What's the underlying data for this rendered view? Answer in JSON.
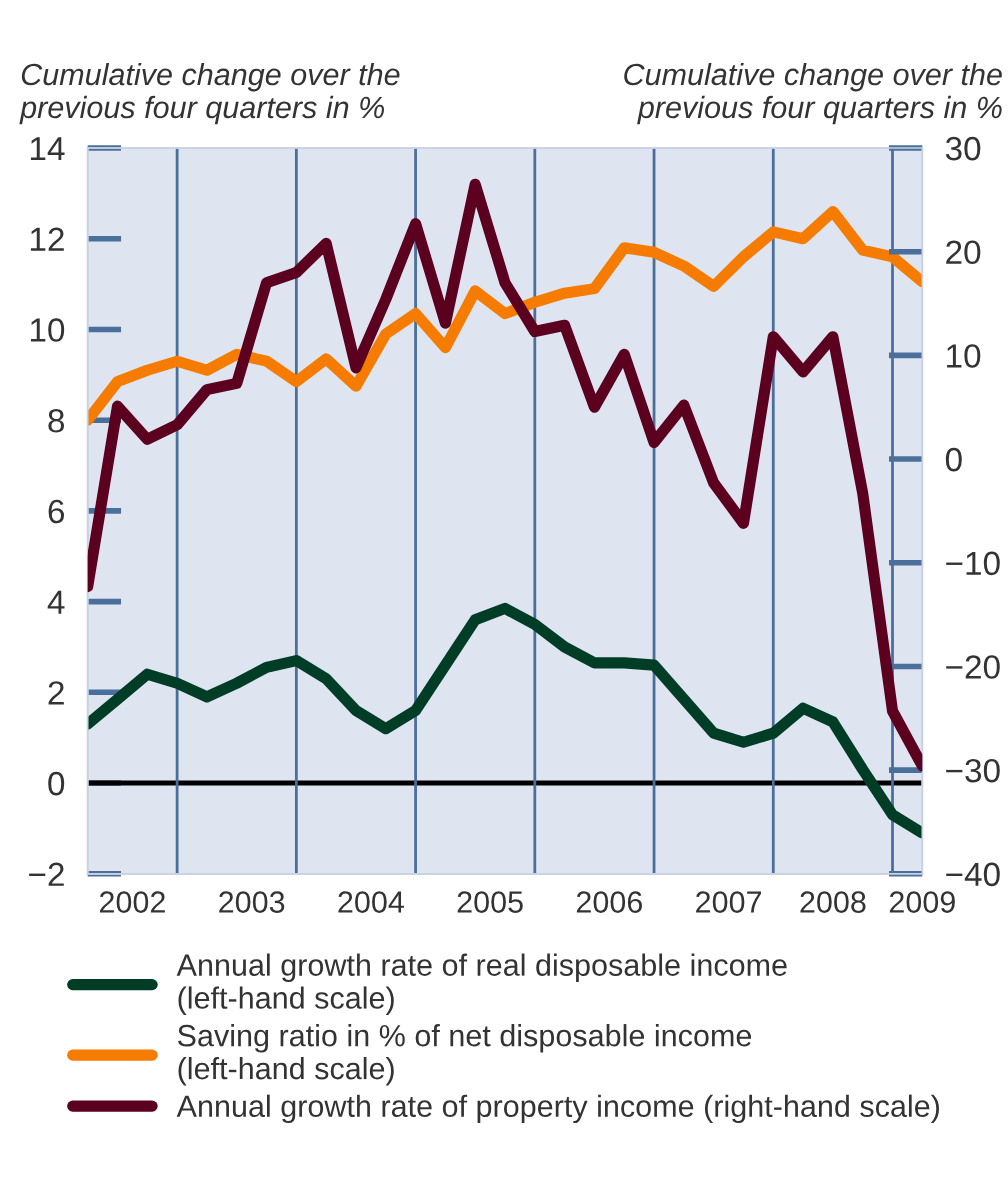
{
  "chart_data": {
    "type": "line",
    "ylabel": "Cumulative change over the\nprevious four quarters in %",
    "y2label": "Cumulative change over the\nprevious four quarters in %",
    "x": [
      2002.0,
      2002.25,
      2002.5,
      2002.75,
      2003.0,
      2003.25,
      2003.5,
      2003.75,
      2004.0,
      2004.25,
      2004.5,
      2004.75,
      2005.0,
      2005.25,
      2005.5,
      2005.75,
      2006.0,
      2006.25,
      2006.5,
      2006.75,
      2007.0,
      2007.25,
      2007.5,
      2007.75,
      2008.0,
      2008.25,
      2008.5,
      2008.75,
      2009.0
    ],
    "series": [
      {
        "name": "Annual growth rate of real disposable income\n(left-hand scale)",
        "color": "#003d26",
        "values": [
          1.3,
          1.85,
          2.4,
          2.2,
          1.9,
          2.2,
          2.55,
          2.7,
          2.3,
          1.6,
          1.2,
          1.6,
          2.6,
          3.6,
          3.85,
          3.5,
          3.0,
          2.65,
          2.65,
          2.6,
          1.85,
          1.1,
          0.9,
          1.1,
          1.65,
          1.35,
          0.3,
          -0.7,
          -1.1
        ]
      },
      {
        "name": "Saving ratio in % of net disposable income\n(left-hand scale)",
        "color": "#f57c00",
        "values": [
          8.0,
          8.85,
          9.1,
          9.3,
          9.1,
          9.45,
          9.3,
          8.85,
          9.35,
          8.75,
          9.9,
          10.35,
          9.6,
          10.85,
          10.35,
          10.6,
          10.8,
          10.9,
          11.8,
          11.7,
          11.4,
          10.95,
          11.6,
          12.15,
          12.0,
          12.6,
          11.75,
          11.6,
          11.05
        ]
      },
      {
        "name": "Annual growth rate of property income (right-hand scale)",
        "color": "#5c0020",
        "axis": "y2",
        "values": [
          -12.3,
          5.1,
          1.9,
          3.3,
          6.7,
          7.3,
          17.0,
          18.0,
          20.8,
          8.8,
          15.4,
          22.7,
          13.1,
          26.5,
          17.0,
          12.3,
          12.9,
          5.0,
          10.1,
          1.6,
          5.2,
          -2.3,
          -6.2,
          11.8,
          8.4,
          11.8,
          -3.3,
          -24.3,
          -29.6
        ]
      }
    ],
    "xlim": [
      2002.0,
      2009.0
    ],
    "xticks": [
      {
        "value": 2002.375,
        "label": "2002"
      },
      {
        "value": 2003.375,
        "label": "2003"
      },
      {
        "value": 2004.375,
        "label": "2004"
      },
      {
        "value": 2005.375,
        "label": "2005"
      },
      {
        "value": 2006.375,
        "label": "2006"
      },
      {
        "value": 2007.375,
        "label": "2007"
      },
      {
        "value": 2008.25,
        "label": "2008"
      },
      {
        "value": 2009.0,
        "label": "2009"
      }
    ],
    "ylim": [
      -2,
      14
    ],
    "yticks": [
      {
        "value": -2,
        "label": "−2"
      },
      0,
      2,
      4,
      6,
      8,
      10,
      12,
      14
    ],
    "y2lim": [
      -40,
      30
    ],
    "y2ticks": [
      {
        "value": -40,
        "label": "−40"
      },
      {
        "value": -30,
        "label": "−30"
      },
      {
        "value": -20,
        "label": "−20"
      },
      {
        "value": -10,
        "label": "−10"
      },
      0,
      10,
      20,
      30
    ],
    "ref_lines": [
      {
        "axis": "y",
        "value": 0,
        "color": "#000000"
      },
      {
        "axis": "x",
        "value": 2002.75,
        "color": "#4a6f9a"
      },
      {
        "axis": "x",
        "value": 2003.75,
        "color": "#4a6f9a"
      },
      {
        "axis": "x",
        "value": 2004.75,
        "color": "#4a6f9a"
      },
      {
        "axis": "x",
        "value": 2005.75,
        "color": "#4a6f9a"
      },
      {
        "axis": "x",
        "value": 2006.75,
        "color": "#4a6f9a"
      },
      {
        "axis": "x",
        "value": 2007.75,
        "color": "#4a6f9a"
      },
      {
        "axis": "x",
        "value": 2008.75,
        "color": "#4a6f9a"
      }
    ],
    "legend": "bottom",
    "grid": false,
    "line_style": "solid",
    "marker": "none"
  }
}
